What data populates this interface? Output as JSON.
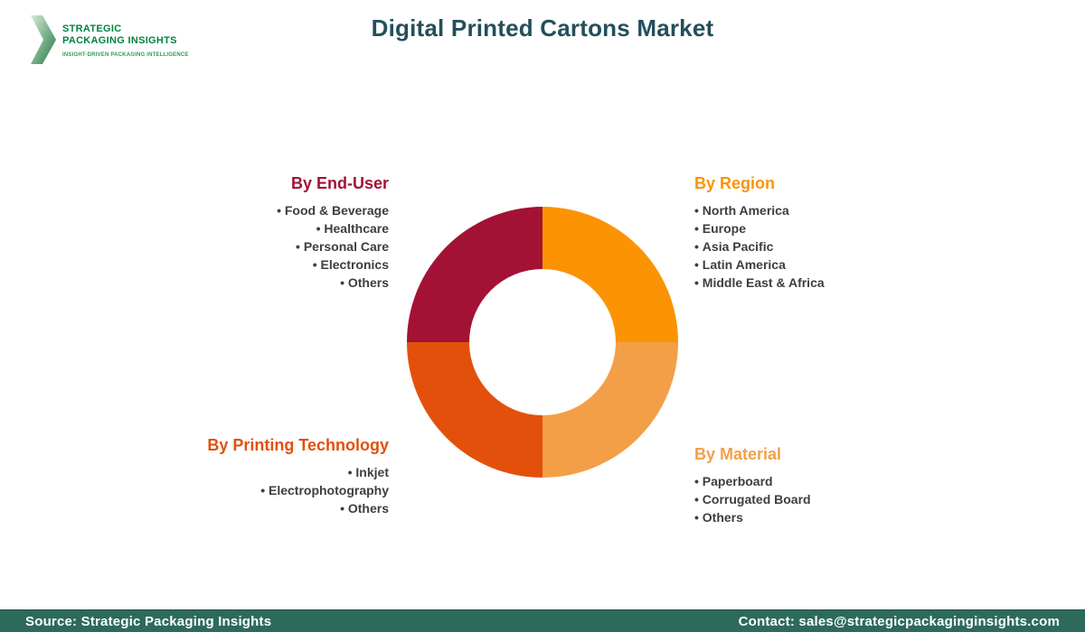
{
  "logo": {
    "line1": "STRATEGIC",
    "line2": "PACKAGING INSIGHTS",
    "tagline": "INSIGHT-DRIVEN PACKAGING INTELLIGENCE",
    "colors": {
      "text_green": "#00833F",
      "tagline_green": "#2E9C51",
      "chevron_light": "#D9EAD6",
      "chevron_dark": "#1E7A41"
    }
  },
  "header": {
    "title": "Digital Printed Cartons Market",
    "color": "#234F5B"
  },
  "segments": [
    {
      "id": "end-user",
      "label": "By End-User",
      "color": "#A31235",
      "align": "right",
      "items": [
        "Food & Beverage",
        "Healthcare",
        "Personal Care",
        "Electronics",
        "Others"
      ]
    },
    {
      "id": "region",
      "label": "By Region",
      "color": "#FB9303",
      "align": "left",
      "items": [
        "North America",
        "Europe",
        "Asia Pacific",
        "Latin America",
        "Middle East & Africa"
      ]
    },
    {
      "id": "printing-technology",
      "label": "By Printing Technology",
      "color": "#E2500C",
      "align": "right",
      "items": [
        "Inkjet",
        "Electrophotography",
        "Others"
      ]
    },
    {
      "id": "material",
      "label": "By Material",
      "color": "#F39F48",
      "align": "left",
      "items": [
        "Paperboard",
        "Corrugated Board",
        "Others"
      ]
    }
  ],
  "chart_data": {
    "type": "pie",
    "subtype": "donut",
    "title": "Digital Printed Cartons Market segmentation wheel",
    "categories": [
      "By Region",
      "By Material",
      "By Printing Technology",
      "By End-User"
    ],
    "values": [
      25,
      25,
      25,
      25
    ],
    "colors": [
      "#FB9303",
      "#F39F48",
      "#E2500C",
      "#A31235"
    ],
    "start_angle_deg": 0,
    "inner_radius_ratio": 0.54,
    "legend_position": "none",
    "data_labels": "none"
  },
  "footer": {
    "source": "Source: Strategic Packaging Insights",
    "contact": "Contact: sales@strategicpackaginginsights.com",
    "background": "#2D6A5C"
  }
}
